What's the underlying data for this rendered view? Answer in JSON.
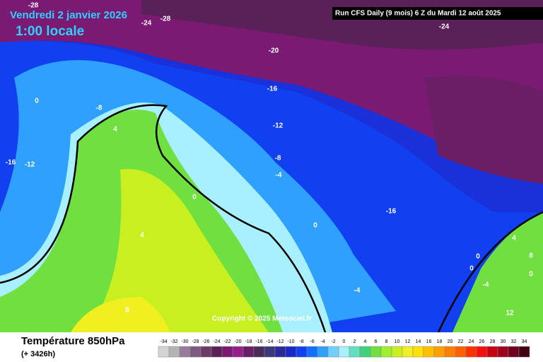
{
  "header": {
    "title": "Vendredi 2 janvier 2026",
    "subtitle": "1:00 locale",
    "run": "Run CFS Daily (9 mois) 6 Z du Mardi 12 août 2025"
  },
  "contour_labels": [
    "-28",
    "-24",
    "-28",
    "-24",
    "-20",
    "-16",
    "0",
    "-8",
    "-12",
    "4",
    "-8",
    "-16",
    "-12",
    "-4",
    "0",
    "-16",
    "4",
    "0",
    "4",
    "8",
    "0",
    "0",
    "0",
    "-4",
    "-4",
    "12",
    "8"
  ],
  "copyright": "Copyright © 2025 Meteociel.fr",
  "legend": {
    "title": "Température 850hPa",
    "lead": "(+ 3426h)",
    "ticks": [
      -34,
      -32,
      -30,
      -28,
      -26,
      -24,
      -22,
      -20,
      -18,
      -16,
      -14,
      -12,
      -10,
      -8,
      -6,
      -4,
      -2,
      0,
      2,
      4,
      6,
      8,
      10,
      12,
      14,
      16,
      18,
      20,
      22,
      24,
      26,
      28,
      30,
      32,
      34
    ],
    "colors": [
      "#d4d4d4",
      "#b4b4b4",
      "#9a7a9a",
      "#7e5a7e",
      "#6a3a6a",
      "#5a2058",
      "#7a1a72",
      "#961e8a",
      "#6a1e66",
      "#4a2a5a",
      "#3a3a7a",
      "#2a2a9a",
      "#1a28c8",
      "#1040f0",
      "#1070ff",
      "#30a0ff",
      "#70d0ff",
      "#a8f0ff",
      "#60e0c0",
      "#40d080",
      "#70e040",
      "#a0f030",
      "#c8f020",
      "#f0f020",
      "#ffe000",
      "#ffc000",
      "#ffa000",
      "#ff8000",
      "#ff6000",
      "#ff3000",
      "#f01010",
      "#c80010",
      "#a00020",
      "#700020",
      "#400010"
    ]
  }
}
